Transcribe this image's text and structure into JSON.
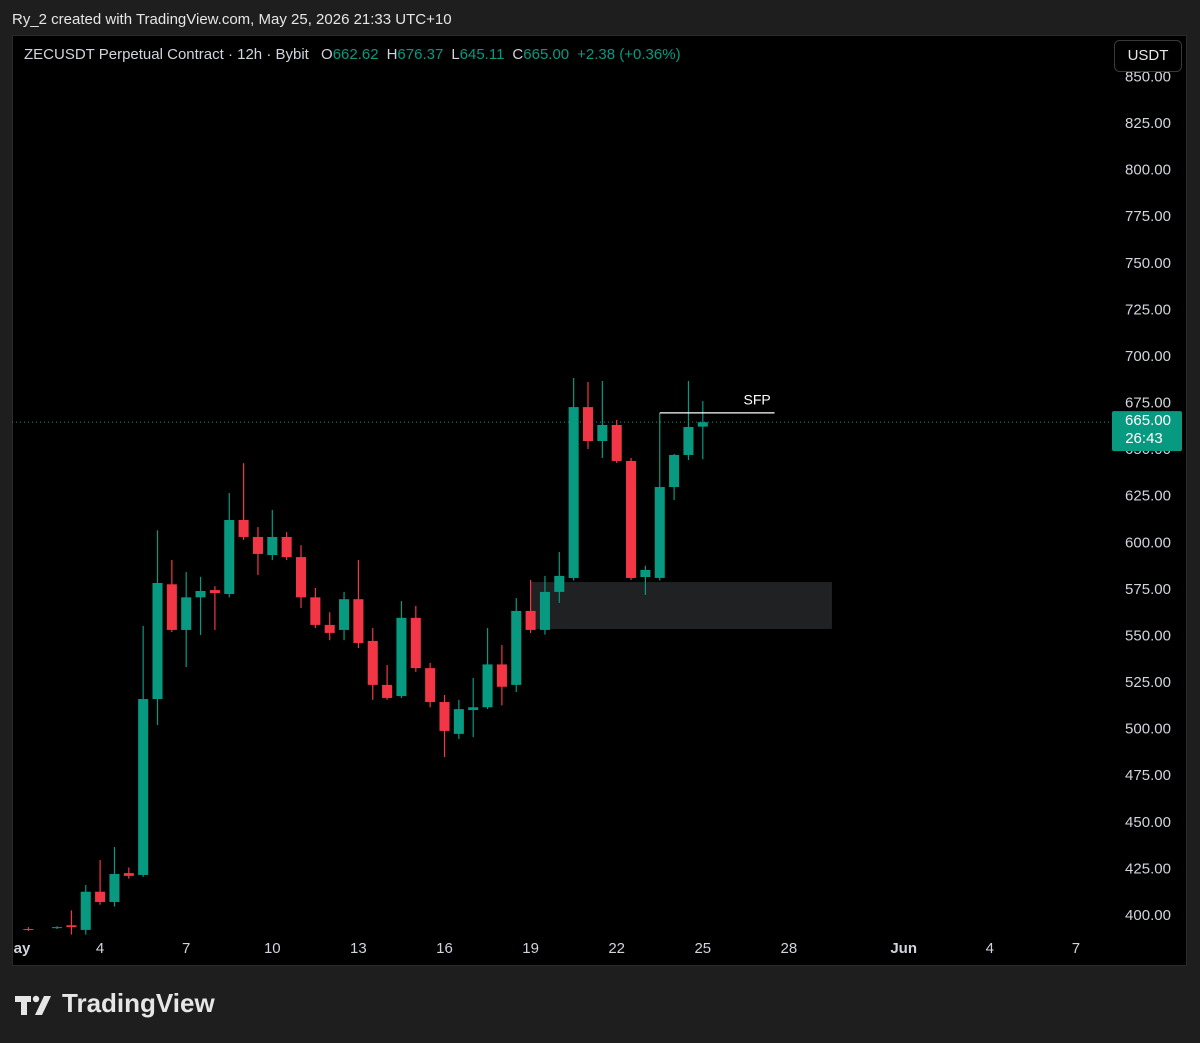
{
  "attribution": "Ry_2 created with TradingView.com, May 25, 2026 21:33 UTC+10",
  "branding": "TradingView",
  "chart_data": {
    "type": "candlestick",
    "title": "ZECUSDT Perpetual Contract · 12h · Bybit",
    "ohlc_legend": [
      {
        "label": "O",
        "value": "662.62"
      },
      {
        "label": "H",
        "value": "676.37"
      },
      {
        "label": "L",
        "value": "645.11"
      },
      {
        "label": "C",
        "value": "665.00"
      }
    ],
    "change": "+2.38 (+0.36%)",
    "currency": "USDT",
    "last_price_label": "665.00",
    "countdown": "26:43",
    "up_color": "#089981",
    "down_color": "#f23645",
    "x": [
      1.5,
      2.5,
      3,
      3.5,
      4,
      4.5,
      5,
      5.5,
      6,
      6.5,
      7,
      7.5,
      8,
      8.5,
      9,
      9.5,
      10,
      10.5,
      11,
      11.5,
      12,
      12.5,
      13,
      13.5,
      14,
      14.5,
      15,
      15.5,
      16,
      16.5,
      17,
      17.5,
      18,
      18.5,
      19,
      19.5,
      20,
      20.5,
      21,
      21.5,
      22,
      22.5,
      23,
      23.5,
      24,
      24.5,
      25
    ],
    "open": [
      393,
      393.6,
      395,
      392.5,
      413,
      407.5,
      423,
      422,
      516.4,
      578,
      553.5,
      571,
      574.9,
      572.8,
      612.5,
      603.4,
      593.7,
      603.4,
      592.6,
      571,
      556.2,
      553.5,
      570,
      547.6,
      524,
      518,
      560,
      533,
      514.8,
      497.7,
      510.5,
      512,
      535,
      524,
      563.7,
      553.5,
      573.9,
      581.4,
      673.1,
      654.9,
      663.5,
      644.2,
      581.9,
      581.4,
      630.2,
      647.4,
      662.62
    ],
    "high": [
      394,
      394.5,
      403,
      416.6,
      430,
      437,
      426,
      555.6,
      607,
      591,
      584.6,
      582,
      577,
      627,
      643,
      608.7,
      617.9,
      606,
      599,
      576,
      563,
      573.9,
      591,
      554.5,
      534.7,
      569,
      566.4,
      535.8,
      518.6,
      516,
      527.7,
      554.5,
      545.4,
      570.6,
      580.3,
      582.5,
      595.3,
      688.7,
      686.6,
      687.1,
      666.2,
      645.8,
      588,
      670,
      648,
      687.1,
      676.37
    ],
    "low": [
      392,
      393,
      390,
      390,
      406,
      405,
      420,
      421,
      502.5,
      552.4,
      533.6,
      550.8,
      553.5,
      571,
      601.8,
      583,
      591,
      591,
      565.3,
      554.5,
      548,
      548,
      543.8,
      516,
      516,
      517,
      531,
      512,
      485.3,
      495,
      496,
      511,
      513,
      520.2,
      551.9,
      551,
      568,
      580,
      650.6,
      645.8,
      643.1,
      580.3,
      572.3,
      580,
      623.2,
      644.7,
      645.11
    ],
    "close": [
      392.5,
      394,
      394,
      413,
      407.5,
      422.5,
      421.5,
      516.4,
      578.7,
      553.5,
      571,
      574.4,
      573.3,
      612.5,
      603.4,
      594.3,
      603.4,
      592.6,
      571,
      556.2,
      551.9,
      570,
      546.5,
      524,
      517,
      560,
      533,
      514.8,
      499.3,
      511,
      512,
      535,
      523,
      563.7,
      553.5,
      573.9,
      582.5,
      673.1,
      654.9,
      663.5,
      644.2,
      581.4,
      585.7,
      630.2,
      647.4,
      662.4,
      665
    ],
    "xlim": [
      0.93,
      38.84
    ],
    "xticks": [
      {
        "value": 1,
        "label": "ay"
      },
      4,
      7,
      10,
      13,
      16,
      19,
      22,
      25,
      28,
      {
        "value": 32,
        "label": "Jun"
      },
      {
        "value": 35,
        "label": "4"
      },
      {
        "value": 38,
        "label": "7"
      }
    ],
    "ylim": [
      388.7,
      872.8
    ],
    "yticks": [
      {
        "value": 400,
        "label": "400.00"
      },
      {
        "value": 425,
        "label": "425.00"
      },
      {
        "value": 450,
        "label": "450.00"
      },
      {
        "value": 475,
        "label": "475.00"
      },
      {
        "value": 500,
        "label": "500.00"
      },
      {
        "value": 525,
        "label": "525.00"
      },
      {
        "value": 550,
        "label": "550.00"
      },
      {
        "value": 575,
        "label": "575.00"
      },
      {
        "value": 600,
        "label": "600.00"
      },
      {
        "value": 625,
        "label": "625.00"
      },
      {
        "value": 650,
        "label": "650.00"
      },
      {
        "value": 675,
        "label": "675.00"
      },
      {
        "value": 700,
        "label": "700.00"
      },
      {
        "value": 725,
        "label": "725.00"
      },
      {
        "value": 750,
        "label": "750.00"
      },
      {
        "value": 775,
        "label": "775.00"
      },
      {
        "value": 800,
        "label": "800.00"
      },
      {
        "value": 825,
        "label": "825.00"
      },
      {
        "value": 850,
        "label": "850.00"
      }
    ],
    "grid": false,
    "zone": {
      "x_range": [
        19,
        29.5
      ],
      "y_range": [
        554,
        579.2
      ],
      "color": "#1f2123"
    },
    "sfp": {
      "text": "SFP",
      "level": 670,
      "x_range": [
        23.5,
        27.5
      ]
    }
  }
}
